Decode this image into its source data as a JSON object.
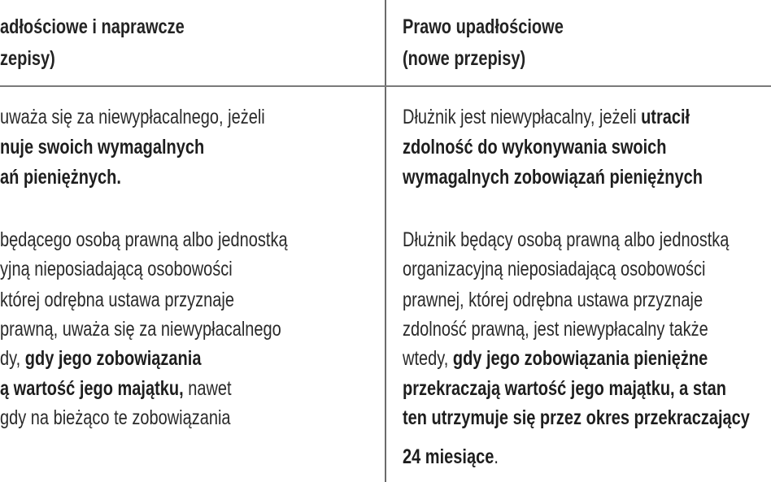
{
  "left": {
    "header": [
      "adłościowe i naprawcze",
      "zepisy)"
    ],
    "lines": [
      [
        {
          "t": "uważa się za niewypłacalnego, jeżeli",
          "b": false
        }
      ],
      [
        {
          "t": "nuje swoich wymagalnych",
          "b": true
        }
      ],
      [
        {
          "t": "ań pieniężnych.",
          "b": true
        }
      ],
      [
        {
          "t": "będącego osobą prawną albo jednostką",
          "b": false
        }
      ],
      [
        {
          "t": "yjną nieposiadającą osobowości",
          "b": false
        }
      ],
      [
        {
          "t": "której odrębna ustawa przyznaje",
          "b": false
        }
      ],
      [
        {
          "t": "prawną, uważa się za niewypłacalnego",
          "b": false
        }
      ],
      [
        {
          "t": "dy, ",
          "b": false
        },
        {
          "t": "gdy jego zobowiązania",
          "b": true
        }
      ],
      [
        {
          "t": "ą wartość jego majątku,",
          "b": true
        },
        {
          "t": " nawet",
          "b": false
        }
      ],
      [
        {
          "t": "gdy na bieżąco te zobowiązania",
          "b": false
        }
      ]
    ]
  },
  "right": {
    "header": [
      "Prawo upadłościowe",
      "(nowe przepisy)"
    ],
    "lines": [
      [
        {
          "t": "Dłużnik jest niewypłacalny, jeżeli ",
          "b": false
        },
        {
          "t": "utracił",
          "b": true
        }
      ],
      [
        {
          "t": "zdolność do wykonywania swoich",
          "b": true
        }
      ],
      [
        {
          "t": "wymagalnych zobowiązań pieniężnych",
          "b": true
        }
      ],
      [
        {
          "t": "Dłużnik będący osobą prawną albo jednostką",
          "b": false
        }
      ],
      [
        {
          "t": "organizacyjną nieposiadającą osobowości",
          "b": false
        }
      ],
      [
        {
          "t": "prawnej, której odrębna ustawa przyznaje",
          "b": false
        }
      ],
      [
        {
          "t": "zdolność prawną, jest niewypłacalny także",
          "b": false
        }
      ],
      [
        {
          "t": "wtedy, ",
          "b": false
        },
        {
          "t": "gdy jego zobowiązania pieniężne",
          "b": true
        }
      ],
      [
        {
          "t": "przekraczają wartość jego majątku, a stan",
          "b": true
        }
      ],
      [
        {
          "t": "ten utrzymuje się przez okres przekraczający",
          "b": true
        }
      ],
      [
        {
          "t": "24 miesiące",
          "b": true
        },
        {
          "t": ".",
          "b": false
        }
      ]
    ]
  }
}
